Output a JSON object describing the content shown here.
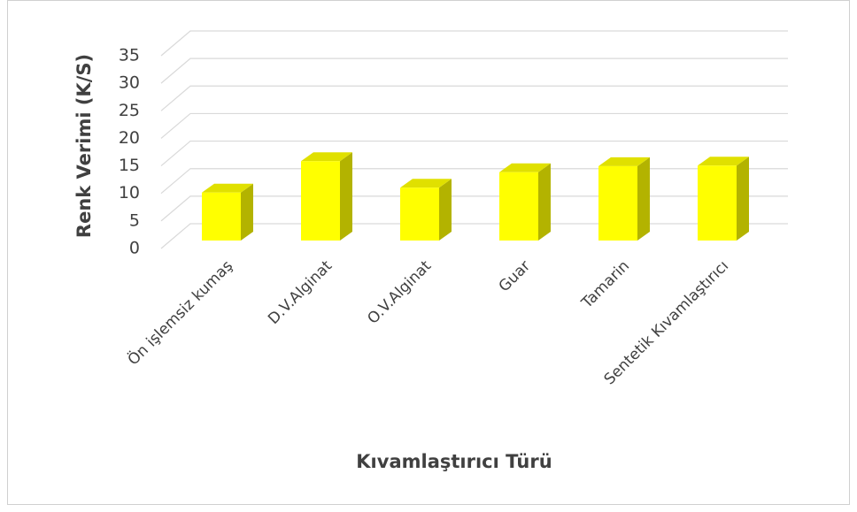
{
  "chart_data": {
    "type": "bar3d",
    "categories": [
      "Ön işlemsiz kumaş",
      "D.V.Alginat",
      "O.V.Alginat",
      "Guar",
      "Tamarin",
      "Sentetik Kıvamlaştırıcı"
    ],
    "values": [
      8.7,
      14.4,
      9.6,
      12.4,
      13.5,
      13.6
    ],
    "color": "#ffff00",
    "ylim": [
      0,
      35
    ],
    "yticks": [
      0,
      5,
      10,
      15,
      20,
      25,
      30,
      35
    ],
    "grid": true,
    "ylabel": "Renk Verimi (K/S)",
    "xlabel": "Kıvamlaştırıcı Türü"
  }
}
